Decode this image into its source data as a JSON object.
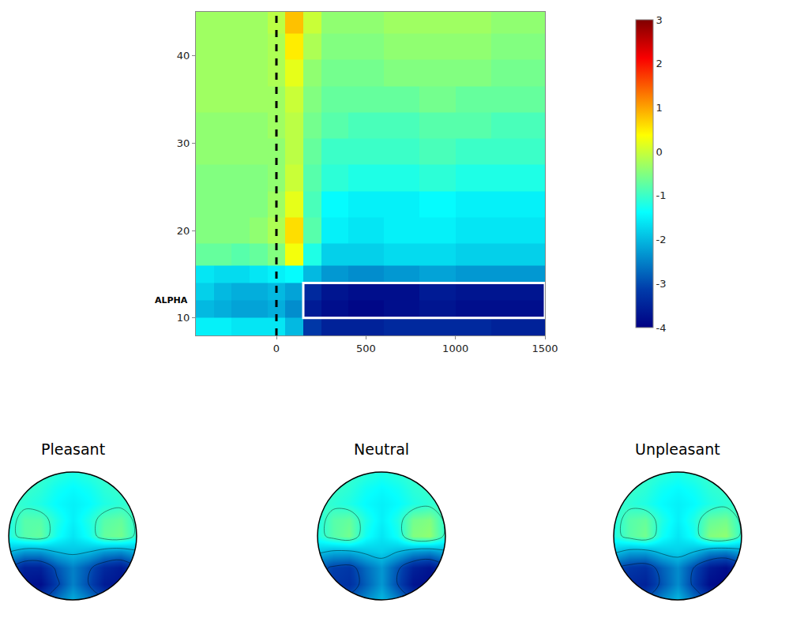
{
  "chart_data": [
    {
      "type": "heatmap",
      "color": "Jet",
      "x": [
        -400,
        -300,
        -200,
        -100,
        0,
        100,
        200,
        300,
        500,
        700,
        900,
        1100,
        1300,
        1500
      ],
      "y": [
        9,
        11,
        13,
        15,
        17,
        20,
        23,
        26,
        29,
        32,
        35,
        38,
        41,
        44
      ],
      "z": [
        [
          -1.5,
          -1.5,
          -1.6,
          -1.6,
          -1.6,
          -2.0,
          -3.2,
          -3.5,
          -3.5,
          -3.4,
          -3.4,
          -3.4,
          -3.5,
          -3.5
        ],
        [
          -2.0,
          -2.1,
          -2.2,
          -2.2,
          -2.1,
          -2.4,
          -3.6,
          -3.8,
          -3.9,
          -3.8,
          -3.7,
          -3.8,
          -3.8,
          -3.8
        ],
        [
          -1.8,
          -2.0,
          -2.1,
          -2.1,
          -2.0,
          -2.2,
          -3.4,
          -3.7,
          -3.8,
          -3.8,
          -3.6,
          -3.7,
          -3.7,
          -3.7
        ],
        [
          -1.6,
          -1.7,
          -1.7,
          -1.6,
          -1.5,
          -1.4,
          -2.0,
          -2.3,
          -2.4,
          -2.3,
          -2.2,
          -2.3,
          -2.3,
          -2.3
        ],
        [
          -0.7,
          -0.7,
          -0.8,
          -0.7,
          -0.5,
          0.3,
          -1.2,
          -1.8,
          -1.8,
          -1.7,
          -1.7,
          -1.8,
          -1.8,
          -1.8
        ],
        [
          -0.5,
          -0.5,
          -0.5,
          -0.4,
          -0.2,
          0.6,
          -0.8,
          -1.5,
          -1.6,
          -1.5,
          -1.5,
          -1.6,
          -1.6,
          -1.6
        ],
        [
          -0.5,
          -0.5,
          -0.5,
          -0.5,
          -0.3,
          0.2,
          -0.9,
          -1.4,
          -1.5,
          -1.5,
          -1.4,
          -1.5,
          -1.5,
          -1.5
        ],
        [
          -0.5,
          -0.5,
          -0.5,
          -0.5,
          -0.4,
          0.0,
          -0.8,
          -1.1,
          -1.2,
          -1.2,
          -1.1,
          -1.2,
          -1.2,
          -1.2
        ],
        [
          -0.4,
          -0.4,
          -0.4,
          -0.4,
          -0.4,
          -0.1,
          -0.7,
          -1.0,
          -1.0,
          -1.0,
          -0.9,
          -1.0,
          -1.0,
          -1.0
        ],
        [
          -0.4,
          -0.4,
          -0.4,
          -0.4,
          -0.3,
          -0.1,
          -0.6,
          -0.8,
          -0.9,
          -0.9,
          -0.8,
          -0.8,
          -0.9,
          -0.9
        ],
        [
          -0.3,
          -0.3,
          -0.3,
          -0.3,
          -0.3,
          0.0,
          -0.5,
          -0.7,
          -0.7,
          -0.7,
          -0.6,
          -0.7,
          -0.7,
          -0.7
        ],
        [
          -0.3,
          -0.3,
          -0.3,
          -0.3,
          -0.2,
          0.2,
          -0.4,
          -0.6,
          -0.6,
          -0.5,
          -0.5,
          -0.5,
          -0.6,
          -0.6
        ],
        [
          -0.3,
          -0.3,
          -0.3,
          -0.3,
          -0.2,
          0.5,
          -0.2,
          -0.5,
          -0.5,
          -0.4,
          -0.4,
          -0.4,
          -0.5,
          -0.5
        ],
        [
          -0.3,
          -0.3,
          -0.3,
          -0.3,
          -0.1,
          0.8,
          0.0,
          -0.4,
          -0.4,
          -0.3,
          -0.3,
          -0.3,
          -0.4,
          -0.4
        ]
      ],
      "xlim": [
        -450,
        1500
      ],
      "ylim": [
        8,
        45
      ],
      "xticks": [
        0,
        500,
        1000,
        1500
      ],
      "yticks": [
        10,
        20,
        30,
        40
      ],
      "colorbar": {
        "range": [
          -4,
          3
        ],
        "ticks": [
          -4,
          -3,
          -2,
          -1,
          0,
          1,
          2,
          3
        ]
      },
      "annotations": [
        {
          "text": "ALPHA",
          "y": 12
        }
      ],
      "event_x": 0,
      "box": {
        "x": [
          150,
          1500
        ],
        "y": [
          10,
          14
        ]
      }
    },
    {
      "type": "topomap",
      "color": "Jet",
      "x": [
        -1,
        -0.75,
        -0.5,
        -0.25,
        0,
        0.25,
        0.5,
        0.75,
        1
      ],
      "y": [
        -1,
        -0.75,
        -0.5,
        -0.25,
        0,
        0.25,
        0.5,
        0.75,
        1
      ],
      "panels": [
        {
          "title": "Pleasant",
          "z": [
            [
              -2.6,
              -3.0,
              -3.1,
              -2.6,
              -2.1,
              -2.5,
              -2.9,
              -2.9,
              -2.4
            ],
            [
              -3.1,
              -3.7,
              -3.8,
              -3.1,
              -2.5,
              -3.0,
              -3.6,
              -3.7,
              -3.1
            ],
            [
              -3.0,
              -3.5,
              -3.5,
              -2.9,
              -2.5,
              -2.9,
              -3.4,
              -3.6,
              -3.1
            ],
            [
              -2.0,
              -2.3,
              -2.3,
              -2.0,
              -1.9,
              -2.0,
              -2.3,
              -2.4,
              -2.1
            ],
            [
              -1.2,
              -0.8,
              -0.7,
              -1.3,
              -1.6,
              -1.3,
              -0.7,
              -0.6,
              -1.1
            ],
            [
              -1.2,
              -0.8,
              -0.8,
              -1.2,
              -1.5,
              -1.2,
              -0.8,
              -0.7,
              -1.1
            ],
            [
              -1.0,
              -1.1,
              -1.2,
              -1.4,
              -1.5,
              -1.4,
              -1.2,
              -1.1,
              -1.0
            ],
            [
              -0.9,
              -1.0,
              -1.1,
              -1.3,
              -1.4,
              -1.3,
              -1.1,
              -1.0,
              -0.9
            ],
            [
              -0.8,
              -0.9,
              -1.0,
              -1.1,
              -1.2,
              -1.1,
              -1.0,
              -0.9,
              -0.8
            ]
          ]
        },
        {
          "title": "Neutral",
          "z": [
            [
              -2.4,
              -2.7,
              -2.8,
              -2.4,
              -2.0,
              -2.5,
              -3.0,
              -3.0,
              -2.5
            ],
            [
              -2.8,
              -3.2,
              -3.3,
              -2.8,
              -2.3,
              -3.0,
              -3.7,
              -3.8,
              -3.2
            ],
            [
              -2.8,
              -3.1,
              -3.2,
              -2.7,
              -2.3,
              -2.9,
              -3.5,
              -3.7,
              -3.2
            ],
            [
              -1.9,
              -2.1,
              -2.1,
              -1.9,
              -1.8,
              -2.0,
              -2.3,
              -2.4,
              -2.1
            ],
            [
              -1.2,
              -0.8,
              -0.6,
              -1.3,
              -1.6,
              -1.3,
              -0.5,
              -0.4,
              -1.1
            ],
            [
              -1.2,
              -0.8,
              -0.7,
              -1.2,
              -1.5,
              -1.2,
              -0.6,
              -0.5,
              -1.1
            ],
            [
              -1.0,
              -1.1,
              -1.2,
              -1.4,
              -1.5,
              -1.4,
              -1.2,
              -1.1,
              -1.0
            ],
            [
              -0.9,
              -1.0,
              -1.1,
              -1.3,
              -1.4,
              -1.3,
              -1.1,
              -1.0,
              -0.9
            ],
            [
              -0.8,
              -0.9,
              -1.0,
              -1.1,
              -1.2,
              -1.1,
              -1.0,
              -0.9,
              -0.8
            ]
          ]
        },
        {
          "title": "Unpleasant",
          "z": [
            [
              -2.5,
              -2.8,
              -2.9,
              -2.4,
              -2.0,
              -2.6,
              -3.1,
              -3.1,
              -2.6
            ],
            [
              -2.9,
              -3.4,
              -3.5,
              -2.9,
              -2.4,
              -3.1,
              -3.8,
              -3.9,
              -3.3
            ],
            [
              -2.9,
              -3.2,
              -3.3,
              -2.8,
              -2.4,
              -3.0,
              -3.6,
              -3.8,
              -3.3
            ],
            [
              -1.9,
              -2.2,
              -2.2,
              -1.9,
              -1.8,
              -2.0,
              -2.4,
              -2.5,
              -2.2
            ],
            [
              -1.2,
              -0.8,
              -0.6,
              -1.3,
              -1.6,
              -1.3,
              -0.5,
              -0.4,
              -1.1
            ],
            [
              -1.2,
              -0.8,
              -0.7,
              -1.2,
              -1.5,
              -1.2,
              -0.7,
              -0.6,
              -1.1
            ],
            [
              -1.0,
              -1.1,
              -1.2,
              -1.4,
              -1.5,
              -1.4,
              -1.2,
              -1.1,
              -1.0
            ],
            [
              -0.9,
              -1.0,
              -1.1,
              -1.3,
              -1.4,
              -1.3,
              -1.1,
              -1.0,
              -0.9
            ],
            [
              -0.8,
              -0.9,
              -1.0,
              -1.1,
              -1.2,
              -1.1,
              -1.0,
              -0.9,
              -0.8
            ]
          ]
        }
      ]
    }
  ]
}
